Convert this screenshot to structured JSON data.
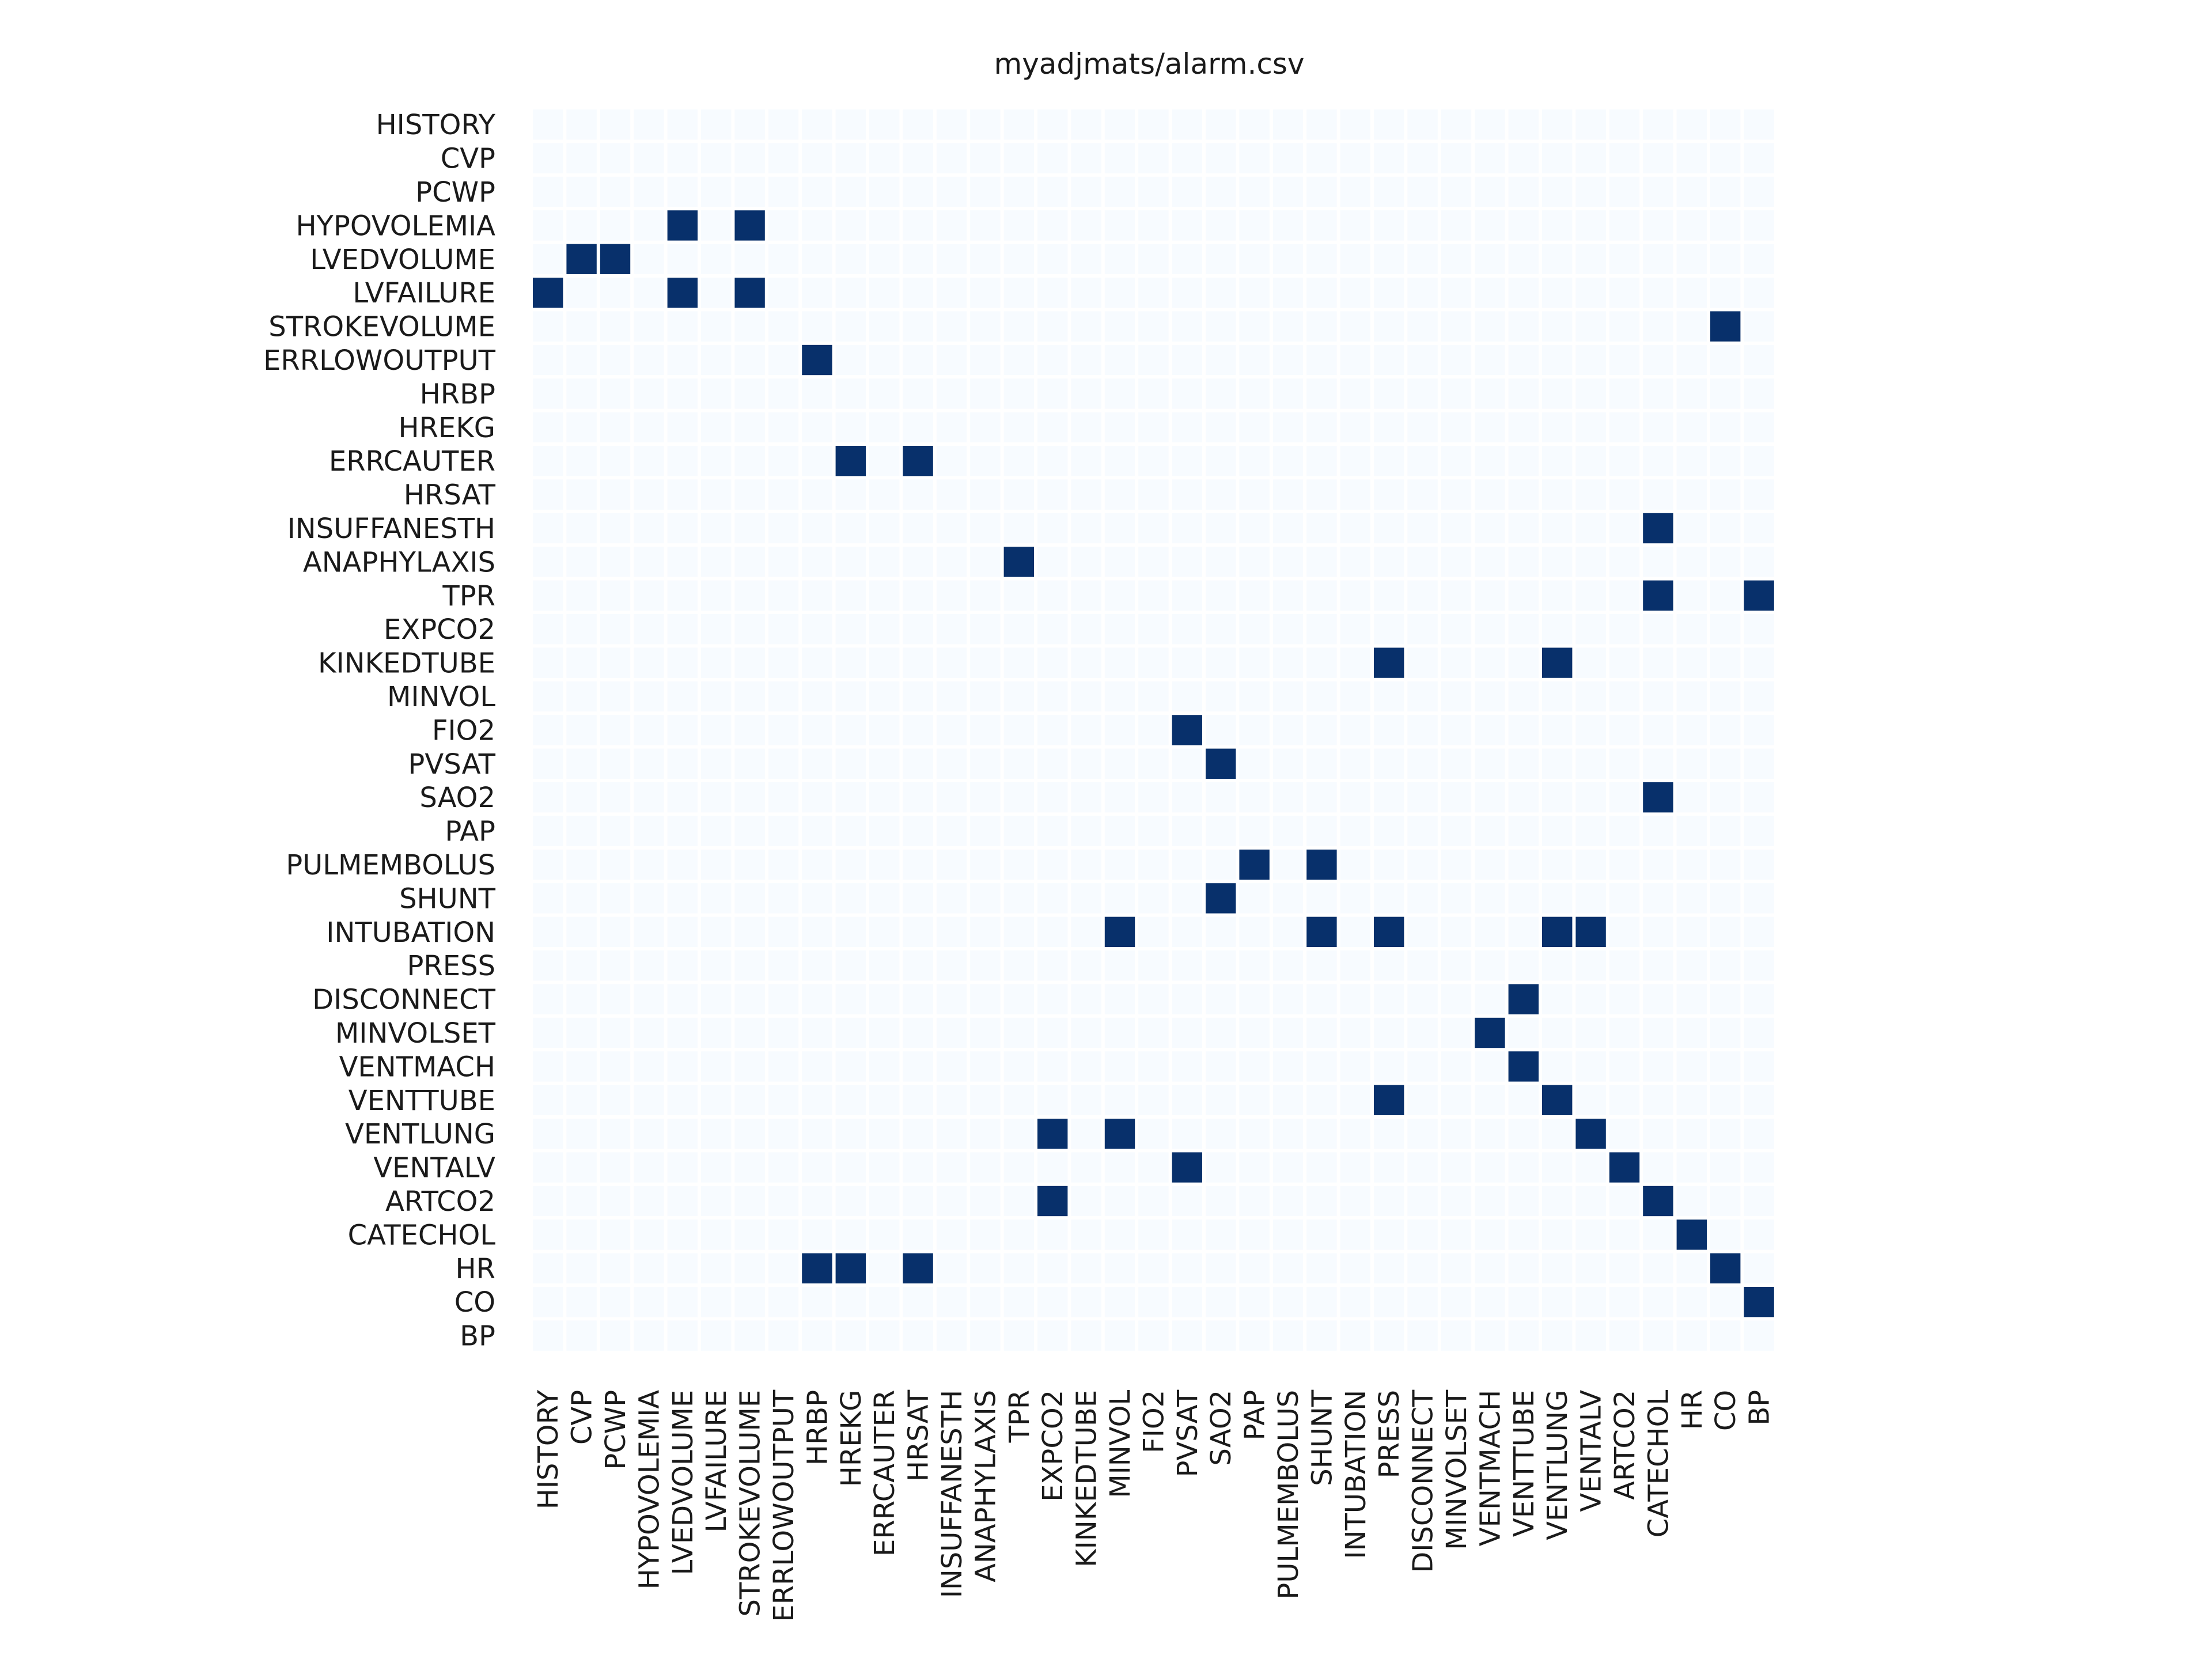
{
  "chart_data": {
    "type": "heatmap",
    "title": "myadjmats/alarm.csv",
    "variables": [
      "HISTORY",
      "CVP",
      "PCWP",
      "HYPOVOLEMIA",
      "LVEDVOLUME",
      "LVFAILURE",
      "STROKEVOLUME",
      "ERRLOWOUTPUT",
      "HRBP",
      "HREKG",
      "ERRCAUTER",
      "HRSAT",
      "INSUFFANESTH",
      "ANAPHYLAXIS",
      "TPR",
      "EXPCO2",
      "KINKEDTUBE",
      "MINVOL",
      "FIO2",
      "PVSAT",
      "SAO2",
      "PAP",
      "PULMEMBOLUS",
      "SHUNT",
      "INTUBATION",
      "PRESS",
      "DISCONNECT",
      "MINVOLSET",
      "VENTMACH",
      "VENTTUBE",
      "VENTLUNG",
      "VENTALV",
      "ARTCO2",
      "CATECHOL",
      "HR",
      "CO",
      "BP"
    ],
    "value_range": [
      0,
      1
    ],
    "colors": {
      "zero": "#f7fbff",
      "one": "#08306b",
      "background": "#ffffff"
    },
    "edges": [
      [
        "HYPOVOLEMIA",
        "LVEDVOLUME"
      ],
      [
        "HYPOVOLEMIA",
        "STROKEVOLUME"
      ],
      [
        "LVEDVOLUME",
        "CVP"
      ],
      [
        "LVEDVOLUME",
        "PCWP"
      ],
      [
        "LVFAILURE",
        "HISTORY"
      ],
      [
        "LVFAILURE",
        "LVEDVOLUME"
      ],
      [
        "LVFAILURE",
        "STROKEVOLUME"
      ],
      [
        "STROKEVOLUME",
        "CO"
      ],
      [
        "ERRLOWOUTPUT",
        "HRBP"
      ],
      [
        "ERRCAUTER",
        "HREKG"
      ],
      [
        "ERRCAUTER",
        "HRSAT"
      ],
      [
        "INSUFFANESTH",
        "CATECHOL"
      ],
      [
        "ANAPHYLAXIS",
        "TPR"
      ],
      [
        "TPR",
        "CATECHOL"
      ],
      [
        "TPR",
        "BP"
      ],
      [
        "KINKEDTUBE",
        "PRESS"
      ],
      [
        "KINKEDTUBE",
        "VENTLUNG"
      ],
      [
        "FIO2",
        "PVSAT"
      ],
      [
        "PVSAT",
        "SAO2"
      ],
      [
        "SAO2",
        "CATECHOL"
      ],
      [
        "PULMEMBOLUS",
        "PAP"
      ],
      [
        "PULMEMBOLUS",
        "SHUNT"
      ],
      [
        "SHUNT",
        "SAO2"
      ],
      [
        "INTUBATION",
        "MINVOL"
      ],
      [
        "INTUBATION",
        "SHUNT"
      ],
      [
        "INTUBATION",
        "PRESS"
      ],
      [
        "INTUBATION",
        "VENTLUNG"
      ],
      [
        "INTUBATION",
        "VENTALV"
      ],
      [
        "DISCONNECT",
        "VENTTUBE"
      ],
      [
        "MINVOLSET",
        "VENTMACH"
      ],
      [
        "VENTMACH",
        "VENTTUBE"
      ],
      [
        "VENTTUBE",
        "PRESS"
      ],
      [
        "VENTTUBE",
        "VENTLUNG"
      ],
      [
        "VENTLUNG",
        "EXPCO2"
      ],
      [
        "VENTLUNG",
        "MINVOL"
      ],
      [
        "VENTLUNG",
        "VENTALV"
      ],
      [
        "VENTALV",
        "PVSAT"
      ],
      [
        "VENTALV",
        "ARTCO2"
      ],
      [
        "ARTCO2",
        "EXPCO2"
      ],
      [
        "ARTCO2",
        "CATECHOL"
      ],
      [
        "CATECHOL",
        "HR"
      ],
      [
        "HR",
        "HRBP"
      ],
      [
        "HR",
        "HREKG"
      ],
      [
        "HR",
        "HRSAT"
      ],
      [
        "HR",
        "CO"
      ],
      [
        "CO",
        "BP"
      ]
    ],
    "legend": "none",
    "grid": false
  }
}
